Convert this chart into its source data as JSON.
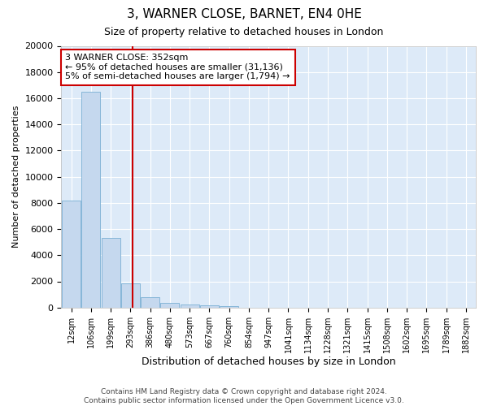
{
  "title": "3, WARNER CLOSE, BARNET, EN4 0HE",
  "subtitle": "Size of property relative to detached houses in London",
  "xlabel": "Distribution of detached houses by size in London",
  "ylabel": "Number of detached properties",
  "footer_line1": "Contains HM Land Registry data © Crown copyright and database right 2024.",
  "footer_line2": "Contains public sector information licensed under the Open Government Licence v3.0.",
  "bar_color": "#c5d8ee",
  "bar_edge_color": "#7aafd4",
  "background_color": "#ddeaf8",
  "grid_color": "#ffffff",
  "fig_bg_color": "#ffffff",
  "vline_color": "#cc0000",
  "annotation_text_line1": "3 WARNER CLOSE: 352sqm",
  "annotation_text_line2": "← 95% of detached houses are smaller (31,136)",
  "annotation_text_line3": "5% of semi-detached houses are larger (1,794) →",
  "annotation_border_color": "#cc0000",
  "categories": [
    "12sqm",
    "106sqm",
    "199sqm",
    "293sqm",
    "386sqm",
    "480sqm",
    "573sqm",
    "667sqm",
    "760sqm",
    "854sqm",
    "947sqm",
    "1041sqm",
    "1134sqm",
    "1228sqm",
    "1321sqm",
    "1415sqm",
    "1508sqm",
    "1602sqm",
    "1695sqm",
    "1789sqm",
    "1882sqm"
  ],
  "values": [
    8150,
    16500,
    5350,
    1850,
    800,
    350,
    250,
    175,
    130,
    0,
    0,
    0,
    0,
    0,
    0,
    0,
    0,
    0,
    0,
    0,
    0
  ],
  "ylim": [
    0,
    20000
  ],
  "yticks": [
    0,
    2000,
    4000,
    6000,
    8000,
    10000,
    12000,
    14000,
    16000,
    18000,
    20000
  ],
  "vline_bar_index": 3,
  "bin_starts": [
    12,
    106,
    199,
    293,
    386,
    480,
    573,
    667,
    760,
    854,
    947,
    1041,
    1134,
    1228,
    1321,
    1415,
    1508,
    1602,
    1695,
    1789,
    1882
  ],
  "property_size": 352
}
